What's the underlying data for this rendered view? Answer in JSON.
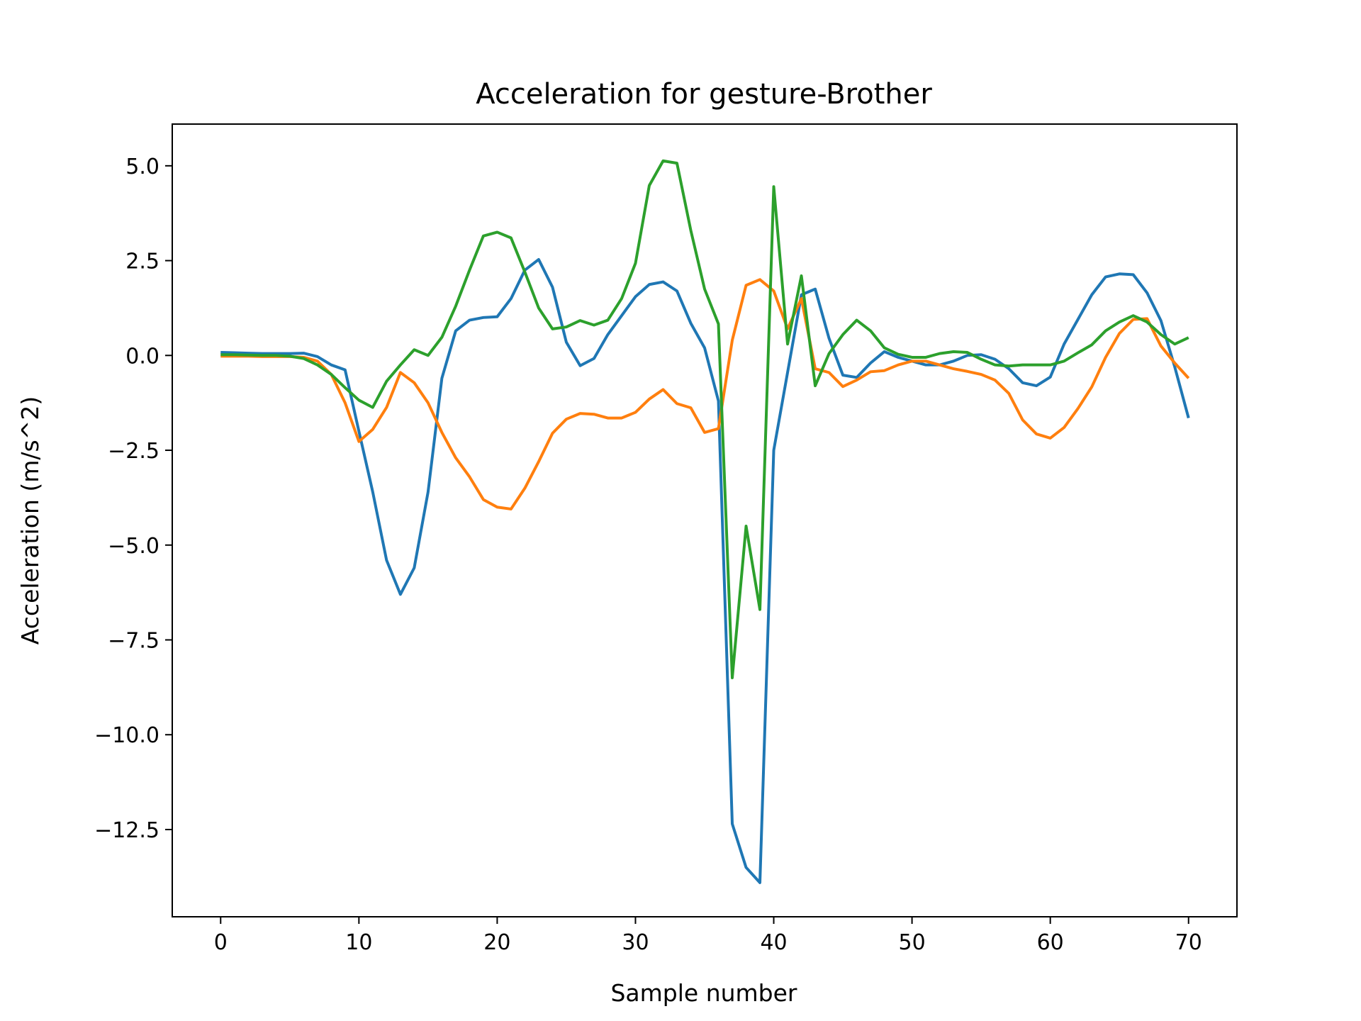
{
  "chart_data": {
    "type": "line",
    "title": "Acceleration for gesture-Brother",
    "xlabel": "Sample number",
    "ylabel": "Acceleration (m/s^2)",
    "xlim": [
      -3.5,
      73.5
    ],
    "ylim": [
      -14.8,
      6.1
    ],
    "xticks": [
      0,
      10,
      20,
      30,
      40,
      50,
      60,
      70
    ],
    "xtick_labels": [
      "0",
      "10",
      "20",
      "30",
      "40",
      "50",
      "60",
      "70"
    ],
    "yticks": [
      5.0,
      2.5,
      0.0,
      -2.5,
      -5.0,
      -7.5,
      -10.0,
      -12.5
    ],
    "ytick_labels": [
      "5.0",
      "2.5",
      "0.0",
      "−2.5",
      "−5.0",
      "−7.5",
      "−10.0",
      "−12.5"
    ],
    "grid": false,
    "legend": "none",
    "series": [
      {
        "color": "#1f77b4",
        "values": [
          0.08,
          0.07,
          0.06,
          0.05,
          0.05,
          0.05,
          0.06,
          -0.03,
          -0.25,
          -0.38,
          -2.0,
          -3.6,
          -5.4,
          -6.3,
          -5.6,
          -3.6,
          -0.6,
          0.65,
          0.93,
          1.0,
          1.02,
          1.5,
          2.25,
          2.53,
          1.8,
          0.35,
          -0.27,
          -0.08,
          0.55,
          1.05,
          1.55,
          1.87,
          1.94,
          1.7,
          0.85,
          0.2,
          -1.2,
          -12.35,
          -13.5,
          -13.9,
          -2.5,
          -0.45,
          1.6,
          1.75,
          0.45,
          -0.52,
          -0.58,
          -0.2,
          0.1,
          -0.05,
          -0.15,
          -0.25,
          -0.25,
          -0.15,
          0.0,
          0.02,
          -0.1,
          -0.35,
          -0.72,
          -0.8,
          -0.57,
          0.3,
          0.95,
          1.6,
          2.07,
          2.15,
          2.13,
          1.65,
          0.92,
          -0.3,
          -1.65
        ]
      },
      {
        "color": "#ff7f0e",
        "values": [
          -0.02,
          -0.02,
          -0.02,
          -0.03,
          -0.03,
          -0.03,
          -0.05,
          -0.15,
          -0.5,
          -1.25,
          -2.27,
          -1.95,
          -1.37,
          -0.45,
          -0.72,
          -1.25,
          -2.03,
          -2.7,
          -3.2,
          -3.8,
          -4.0,
          -4.05,
          -3.5,
          -2.8,
          -2.05,
          -1.68,
          -1.53,
          -1.55,
          -1.65,
          -1.65,
          -1.5,
          -1.15,
          -0.9,
          -1.27,
          -1.38,
          -2.03,
          -1.93,
          0.4,
          1.85,
          2.0,
          1.7,
          0.7,
          1.5,
          -0.35,
          -0.45,
          -0.82,
          -0.65,
          -0.43,
          -0.4,
          -0.25,
          -0.15,
          -0.15,
          -0.25,
          -0.35,
          -0.42,
          -0.5,
          -0.65,
          -1.0,
          -1.7,
          -2.07,
          -2.18,
          -1.9,
          -1.4,
          -0.83,
          -0.05,
          0.58,
          0.95,
          0.97,
          0.25,
          -0.2,
          -0.6
        ]
      },
      {
        "color": "#2ca02c",
        "values": [
          0.02,
          0.02,
          0.01,
          0.0,
          0.0,
          -0.02,
          -0.08,
          -0.25,
          -0.5,
          -0.85,
          -1.18,
          -1.37,
          -0.68,
          -0.25,
          0.15,
          0.0,
          0.48,
          1.3,
          2.25,
          3.15,
          3.25,
          3.1,
          2.2,
          1.25,
          0.7,
          0.75,
          0.92,
          0.8,
          0.93,
          1.5,
          2.43,
          4.48,
          5.13,
          5.07,
          3.3,
          1.75,
          0.83,
          -8.5,
          -4.5,
          -6.7,
          4.45,
          0.3,
          2.1,
          -0.8,
          0.05,
          0.55,
          0.93,
          0.65,
          0.2,
          0.03,
          -0.05,
          -0.05,
          0.05,
          0.1,
          0.08,
          -0.1,
          -0.25,
          -0.28,
          -0.25,
          -0.25,
          -0.25,
          -0.15,
          0.07,
          0.28,
          0.65,
          0.88,
          1.05,
          0.88,
          0.55,
          0.3,
          0.47
        ]
      }
    ]
  }
}
